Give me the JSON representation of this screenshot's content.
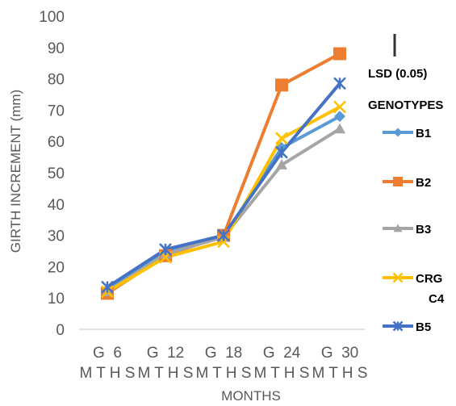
{
  "chart_data": {
    "type": "line",
    "title": "",
    "xlabel": "MONTHS",
    "ylabel": "GIRTH INCREMENT (mm)",
    "ylim": [
      0,
      100
    ],
    "yticks": [
      "0",
      "10",
      "20",
      "30",
      "40",
      "50",
      "60",
      "70",
      "80",
      "90",
      "100"
    ],
    "categories": [
      "G 6 MTHS",
      "G 12 MTHS",
      "G 18 MTHS",
      "G 24 MTHS",
      "G 30 MTHS"
    ],
    "category_lines": [
      [
        "G  6",
        "M T H S"
      ],
      [
        "G  12",
        "M T H S"
      ],
      [
        "G  18",
        "M T H S"
      ],
      [
        "G  24",
        "M T H S"
      ],
      [
        "G  30",
        "M T H S"
      ]
    ],
    "grid": false,
    "legend_position": "right",
    "legend_header_lsd": "LSD (0.05)",
    "legend_header_genotypes": "GENOTYPES",
    "series": [
      {
        "name": "B1",
        "color": "#5B9BD5",
        "marker": "diamond",
        "values": [
          12.5,
          24.5,
          29.5,
          58,
          68
        ]
      },
      {
        "name": "B2",
        "color": "#ED7D31",
        "marker": "square",
        "values": [
          11.5,
          23.5,
          30,
          78,
          88
        ]
      },
      {
        "name": "B3",
        "color": "#A5A5A5",
        "marker": "triangle",
        "values": [
          12,
          24,
          29.5,
          52.5,
          64
        ]
      },
      {
        "name": "CRG C4",
        "label_lines": [
          "CRG",
          "C4"
        ],
        "color": "#FFC000",
        "marker": "x",
        "values": [
          12,
          23,
          28,
          61,
          71
        ]
      },
      {
        "name": "B5",
        "color": "#4472C4",
        "marker": "star",
        "values": [
          13.5,
          25.5,
          30,
          56.5,
          78.5
        ]
      }
    ]
  }
}
